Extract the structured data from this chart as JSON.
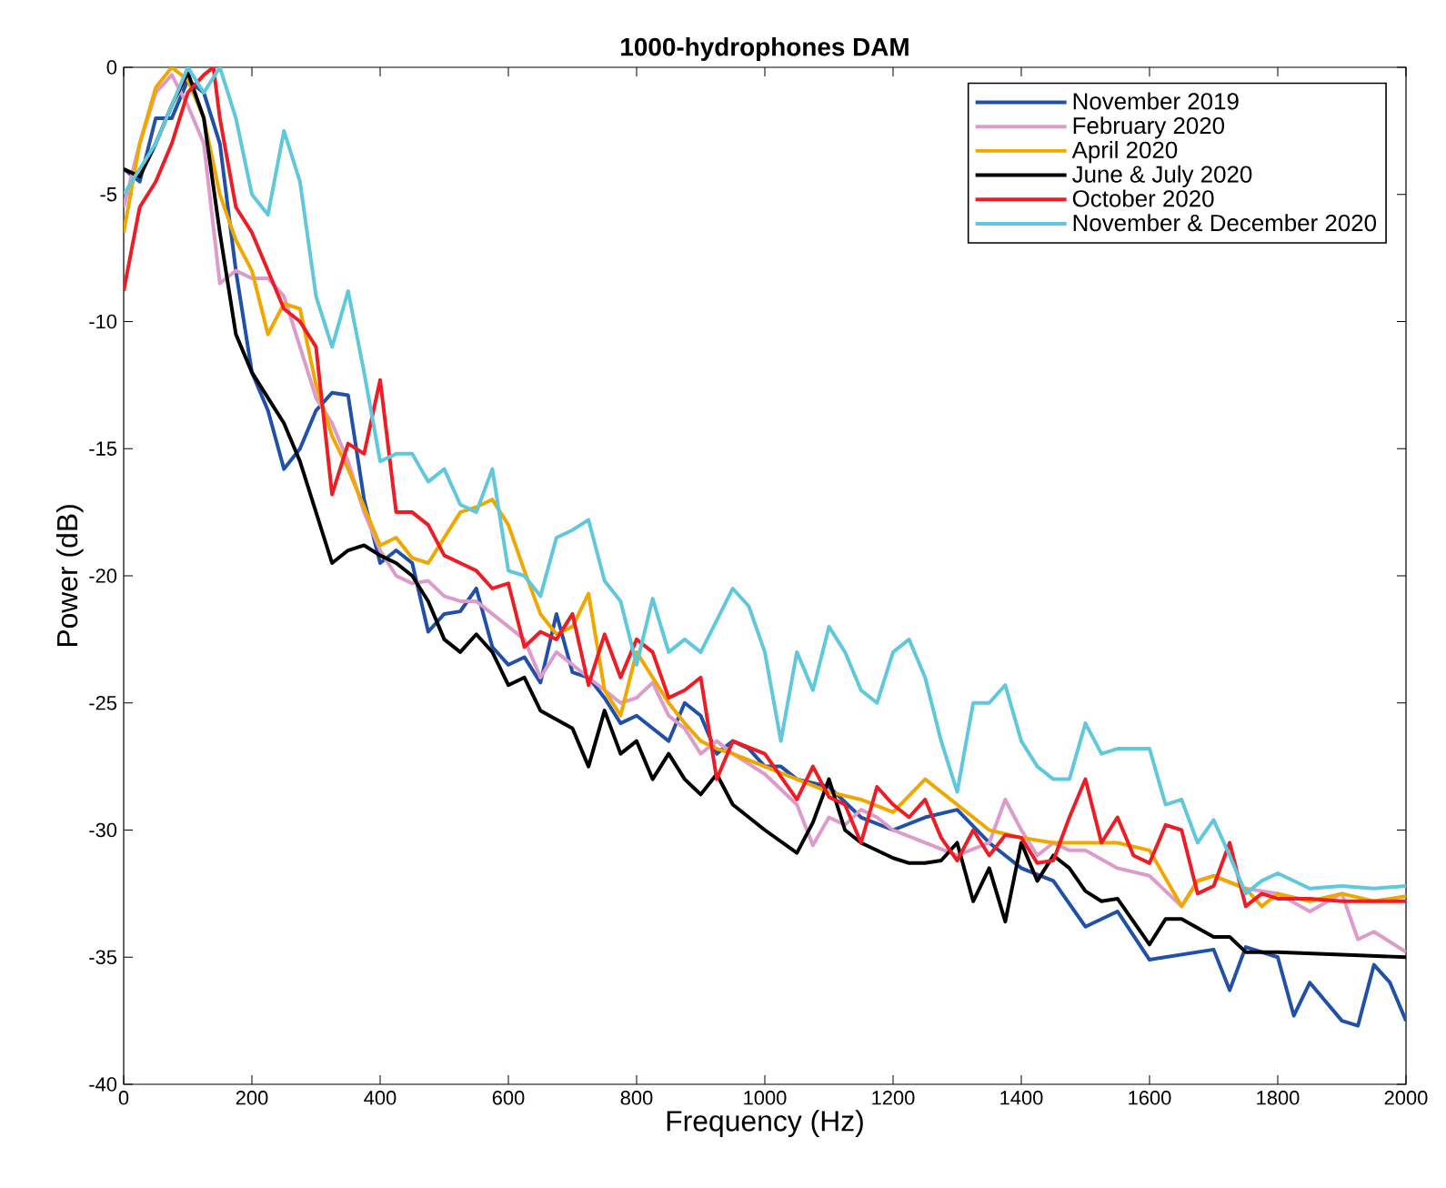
{
  "chart_data": {
    "type": "line",
    "title": "1000-hydrophones DAM",
    "xlabel": "Frequency (Hz)",
    "ylabel": "Power (dB)",
    "xlim": [
      0,
      2000
    ],
    "ylim": [
      -40,
      0
    ],
    "xticks": [
      0,
      200,
      400,
      600,
      800,
      1000,
      1200,
      1400,
      1600,
      1800,
      2000
    ],
    "yticks": [
      -40,
      -35,
      -30,
      -25,
      -20,
      -15,
      -10,
      -5,
      0
    ],
    "grid": false,
    "legend": "top right",
    "marker": "none",
    "line_style": "solid",
    "series": [
      {
        "name": "November 2019",
        "color": "#2150a8",
        "x": [
          0,
          25,
          50,
          75,
          100,
          125,
          150,
          175,
          200,
          225,
          250,
          275,
          300,
          325,
          350,
          375,
          400,
          425,
          450,
          475,
          500,
          525,
          550,
          575,
          600,
          625,
          650,
          675,
          700,
          725,
          750,
          775,
          800,
          825,
          850,
          875,
          900,
          925,
          950,
          975,
          1000,
          1025,
          1050,
          1100,
          1150,
          1200,
          1250,
          1300,
          1350,
          1400,
          1450,
          1500,
          1550,
          1600,
          1650,
          1700,
          1725,
          1750,
          1800,
          1825,
          1850,
          1900,
          1925,
          1950,
          1975,
          2000
        ],
        "values": [
          -4,
          -4.5,
          -2,
          -2,
          -0.5,
          -1,
          -3,
          -8,
          -12,
          -13.5,
          -15.8,
          -15,
          -13.5,
          -12.8,
          -12.9,
          -17,
          -19.5,
          -19,
          -19.5,
          -22.2,
          -21.5,
          -21.4,
          -20.5,
          -22.8,
          -23.5,
          -23.2,
          -24.2,
          -21.5,
          -23.8,
          -24,
          -24.8,
          -25.8,
          -25.5,
          -26,
          -26.5,
          -25,
          -25.5,
          -27,
          -26.5,
          -26.8,
          -27.5,
          -27.5,
          -28,
          -28.3,
          -29.5,
          -30,
          -29.5,
          -29.2,
          -30.5,
          -31.5,
          -32,
          -33.8,
          -33.2,
          -35.1,
          -34.9,
          -34.7,
          -36.3,
          -34.6,
          -35,
          -37.3,
          -36,
          -37.5,
          -37.7,
          -35.3,
          -36,
          -37.5
        ]
      },
      {
        "name": "February 2020",
        "color": "#dd9bcb",
        "x": [
          0,
          25,
          50,
          75,
          100,
          125,
          150,
          175,
          200,
          225,
          250,
          275,
          300,
          325,
          350,
          375,
          400,
          425,
          450,
          475,
          500,
          525,
          550,
          575,
          600,
          625,
          650,
          675,
          700,
          725,
          750,
          775,
          800,
          825,
          850,
          875,
          900,
          925,
          950,
          1000,
          1050,
          1075,
          1100,
          1125,
          1150,
          1175,
          1200,
          1250,
          1300,
          1350,
          1375,
          1400,
          1425,
          1450,
          1475,
          1500,
          1550,
          1600,
          1650,
          1675,
          1700,
          1750,
          1800,
          1850,
          1900,
          1925,
          1950,
          2000
        ],
        "values": [
          -5.5,
          -3,
          -1,
          -0.3,
          -1.5,
          -3,
          -8.5,
          -8,
          -8.3,
          -8.3,
          -9,
          -11,
          -13,
          -14,
          -15.5,
          -17.5,
          -19,
          -20,
          -20.3,
          -20.2,
          -20.8,
          -21,
          -21,
          -21.5,
          -22,
          -22.5,
          -24,
          -23,
          -23.5,
          -24,
          -24.5,
          -25,
          -24.8,
          -24.2,
          -25.5,
          -26,
          -27,
          -26.5,
          -27,
          -27.8,
          -29,
          -30.6,
          -29.5,
          -29.8,
          -29.2,
          -29.5,
          -30,
          -30.5,
          -31,
          -30.5,
          -28.8,
          -30,
          -31,
          -30.5,
          -30.8,
          -30.8,
          -31.5,
          -31.8,
          -33,
          -32,
          -31.8,
          -32.3,
          -32.5,
          -33.2,
          -32.5,
          -34.3,
          -34,
          -34.8
        ]
      },
      {
        "name": "April 2020",
        "color": "#f0a800",
        "x": [
          0,
          25,
          50,
          75,
          100,
          125,
          150,
          175,
          200,
          225,
          250,
          275,
          300,
          325,
          350,
          375,
          400,
          425,
          450,
          475,
          500,
          525,
          550,
          575,
          600,
          625,
          650,
          675,
          700,
          725,
          750,
          775,
          800,
          825,
          850,
          875,
          900,
          925,
          950,
          1000,
          1050,
          1100,
          1150,
          1200,
          1250,
          1300,
          1350,
          1400,
          1450,
          1500,
          1550,
          1600,
          1650,
          1675,
          1700,
          1750,
          1775,
          1800,
          1850,
          1900,
          1950,
          2000
        ],
        "values": [
          -6.5,
          -3,
          -0.8,
          0,
          -0.5,
          -2,
          -5,
          -6.8,
          -8,
          -10.5,
          -9.3,
          -9.5,
          -12.5,
          -14.5,
          -15.8,
          -17.3,
          -18.8,
          -18.5,
          -19.3,
          -19.5,
          -18.5,
          -17.5,
          -17.3,
          -17,
          -18,
          -19.8,
          -21.5,
          -22.3,
          -22,
          -20.7,
          -24.5,
          -25.5,
          -23,
          -24,
          -25,
          -25.8,
          -26.5,
          -26.8,
          -27,
          -27.5,
          -28,
          -28.5,
          -28.8,
          -29.3,
          -28,
          -29,
          -30,
          -30.3,
          -30.5,
          -30.5,
          -30.5,
          -30.8,
          -33,
          -32,
          -31.8,
          -32.3,
          -33,
          -32.5,
          -32.8,
          -32.5,
          -32.8,
          -32.6
        ]
      },
      {
        "name": "June & July 2020",
        "color": "#000000",
        "x": [
          0,
          25,
          50,
          75,
          100,
          125,
          150,
          175,
          200,
          225,
          250,
          275,
          300,
          325,
          350,
          375,
          400,
          425,
          450,
          475,
          500,
          525,
          550,
          575,
          600,
          625,
          650,
          700,
          725,
          750,
          775,
          800,
          825,
          850,
          875,
          900,
          925,
          950,
          975,
          1000,
          1050,
          1075,
          1100,
          1125,
          1150,
          1200,
          1225,
          1250,
          1275,
          1300,
          1325,
          1350,
          1375,
          1400,
          1425,
          1450,
          1475,
          1500,
          1525,
          1550,
          1600,
          1625,
          1650,
          1700,
          1725,
          1750,
          1800,
          1900,
          2000
        ],
        "values": [
          -4,
          -4.3,
          -3,
          -1.5,
          -0.2,
          -2,
          -6.5,
          -10.5,
          -12,
          -13,
          -14,
          -15.5,
          -17.5,
          -19.5,
          -19,
          -18.8,
          -19.2,
          -19.5,
          -20,
          -21,
          -22.5,
          -23,
          -22.3,
          -23,
          -24.3,
          -24,
          -25.3,
          -26,
          -27.5,
          -25.3,
          -27,
          -26.5,
          -28,
          -27,
          -28,
          -28.6,
          -27.8,
          -29,
          -29.5,
          -30,
          -30.9,
          -29.7,
          -28,
          -30,
          -30.5,
          -31.1,
          -31.3,
          -31.3,
          -31.2,
          -30.5,
          -32.8,
          -31.5,
          -33.6,
          -30.5,
          -32,
          -31,
          -31.5,
          -32.4,
          -32.8,
          -32.7,
          -34.5,
          -33.5,
          -33.5,
          -34.2,
          -34.2,
          -34.8,
          -34.8,
          -34.9,
          -35
        ]
      },
      {
        "name": "October 2020",
        "color": "#ee1c25",
        "x": [
          0,
          25,
          50,
          75,
          100,
          125,
          140,
          150,
          175,
          200,
          225,
          250,
          275,
          300,
          325,
          350,
          375,
          400,
          425,
          450,
          475,
          500,
          525,
          550,
          575,
          600,
          625,
          650,
          675,
          700,
          725,
          750,
          775,
          800,
          825,
          850,
          875,
          900,
          925,
          950,
          1000,
          1050,
          1075,
          1100,
          1125,
          1150,
          1175,
          1200,
          1225,
          1250,
          1275,
          1300,
          1325,
          1350,
          1375,
          1400,
          1425,
          1450,
          1475,
          1500,
          1525,
          1550,
          1575,
          1600,
          1625,
          1650,
          1675,
          1700,
          1725,
          1750,
          1775,
          1800,
          1850,
          1900,
          2000
        ],
        "values": [
          -8.8,
          -5.5,
          -4.5,
          -3,
          -1,
          -0.3,
          0,
          -2,
          -5.5,
          -6.5,
          -8,
          -9.5,
          -10,
          -11,
          -16.8,
          -14.8,
          -15.2,
          -12.3,
          -17.5,
          -17.5,
          -18,
          -19.2,
          -19.5,
          -19.8,
          -20.5,
          -20.3,
          -22.8,
          -22.2,
          -22.5,
          -21.5,
          -24.3,
          -22.3,
          -24,
          -22.5,
          -23,
          -24.8,
          -24.5,
          -24,
          -28,
          -26.5,
          -27,
          -28.8,
          -27.5,
          -28.7,
          -29,
          -30.5,
          -28.3,
          -29,
          -29.5,
          -28.8,
          -30.3,
          -31.2,
          -30,
          -31,
          -30.2,
          -30.3,
          -31.3,
          -31.2,
          -29.5,
          -28,
          -30.5,
          -29.5,
          -31,
          -31.3,
          -29.8,
          -30,
          -32.5,
          -32.2,
          -30.5,
          -33,
          -32.5,
          -32.7,
          -32.7,
          -32.8,
          -32.8
        ]
      },
      {
        "name": "November & December 2020",
        "color": "#60c8dc",
        "x": [
          0,
          25,
          50,
          75,
          100,
          125,
          150,
          175,
          200,
          225,
          250,
          275,
          300,
          325,
          350,
          375,
          400,
          425,
          450,
          475,
          500,
          525,
          550,
          575,
          600,
          625,
          650,
          675,
          700,
          725,
          750,
          775,
          800,
          825,
          850,
          875,
          900,
          950,
          975,
          1000,
          1025,
          1050,
          1075,
          1100,
          1125,
          1150,
          1175,
          1200,
          1225,
          1250,
          1275,
          1300,
          1325,
          1350,
          1375,
          1400,
          1425,
          1450,
          1475,
          1500,
          1525,
          1550,
          1575,
          1600,
          1625,
          1650,
          1675,
          1700,
          1725,
          1750,
          1775,
          1800,
          1850,
          1900,
          1950,
          2000
        ],
        "values": [
          -5,
          -4,
          -3,
          -1.5,
          0,
          -1,
          0,
          -2,
          -5,
          -5.8,
          -2.5,
          -4.5,
          -9,
          -11,
          -8.8,
          -12,
          -15.5,
          -15.2,
          -15.2,
          -16.3,
          -15.8,
          -17.2,
          -17.5,
          -15.8,
          -19.8,
          -20,
          -20.8,
          -18.5,
          -18.2,
          -17.8,
          -20.2,
          -21,
          -23.5,
          -20.9,
          -23,
          -22.5,
          -23,
          -20.5,
          -21.2,
          -23,
          -26.5,
          -23,
          -24.5,
          -22,
          -23,
          -24.5,
          -25,
          -23,
          -22.5,
          -24,
          -26.5,
          -28.5,
          -25,
          -25,
          -24.3,
          -26.5,
          -27.5,
          -28,
          -28,
          -25.8,
          -27,
          -26.8,
          -26.8,
          -26.8,
          -29,
          -28.8,
          -30.5,
          -29.6,
          -31,
          -32.5,
          -32,
          -31.7,
          -32.3,
          -32.2,
          -32.3,
          -32.2
        ]
      }
    ]
  }
}
